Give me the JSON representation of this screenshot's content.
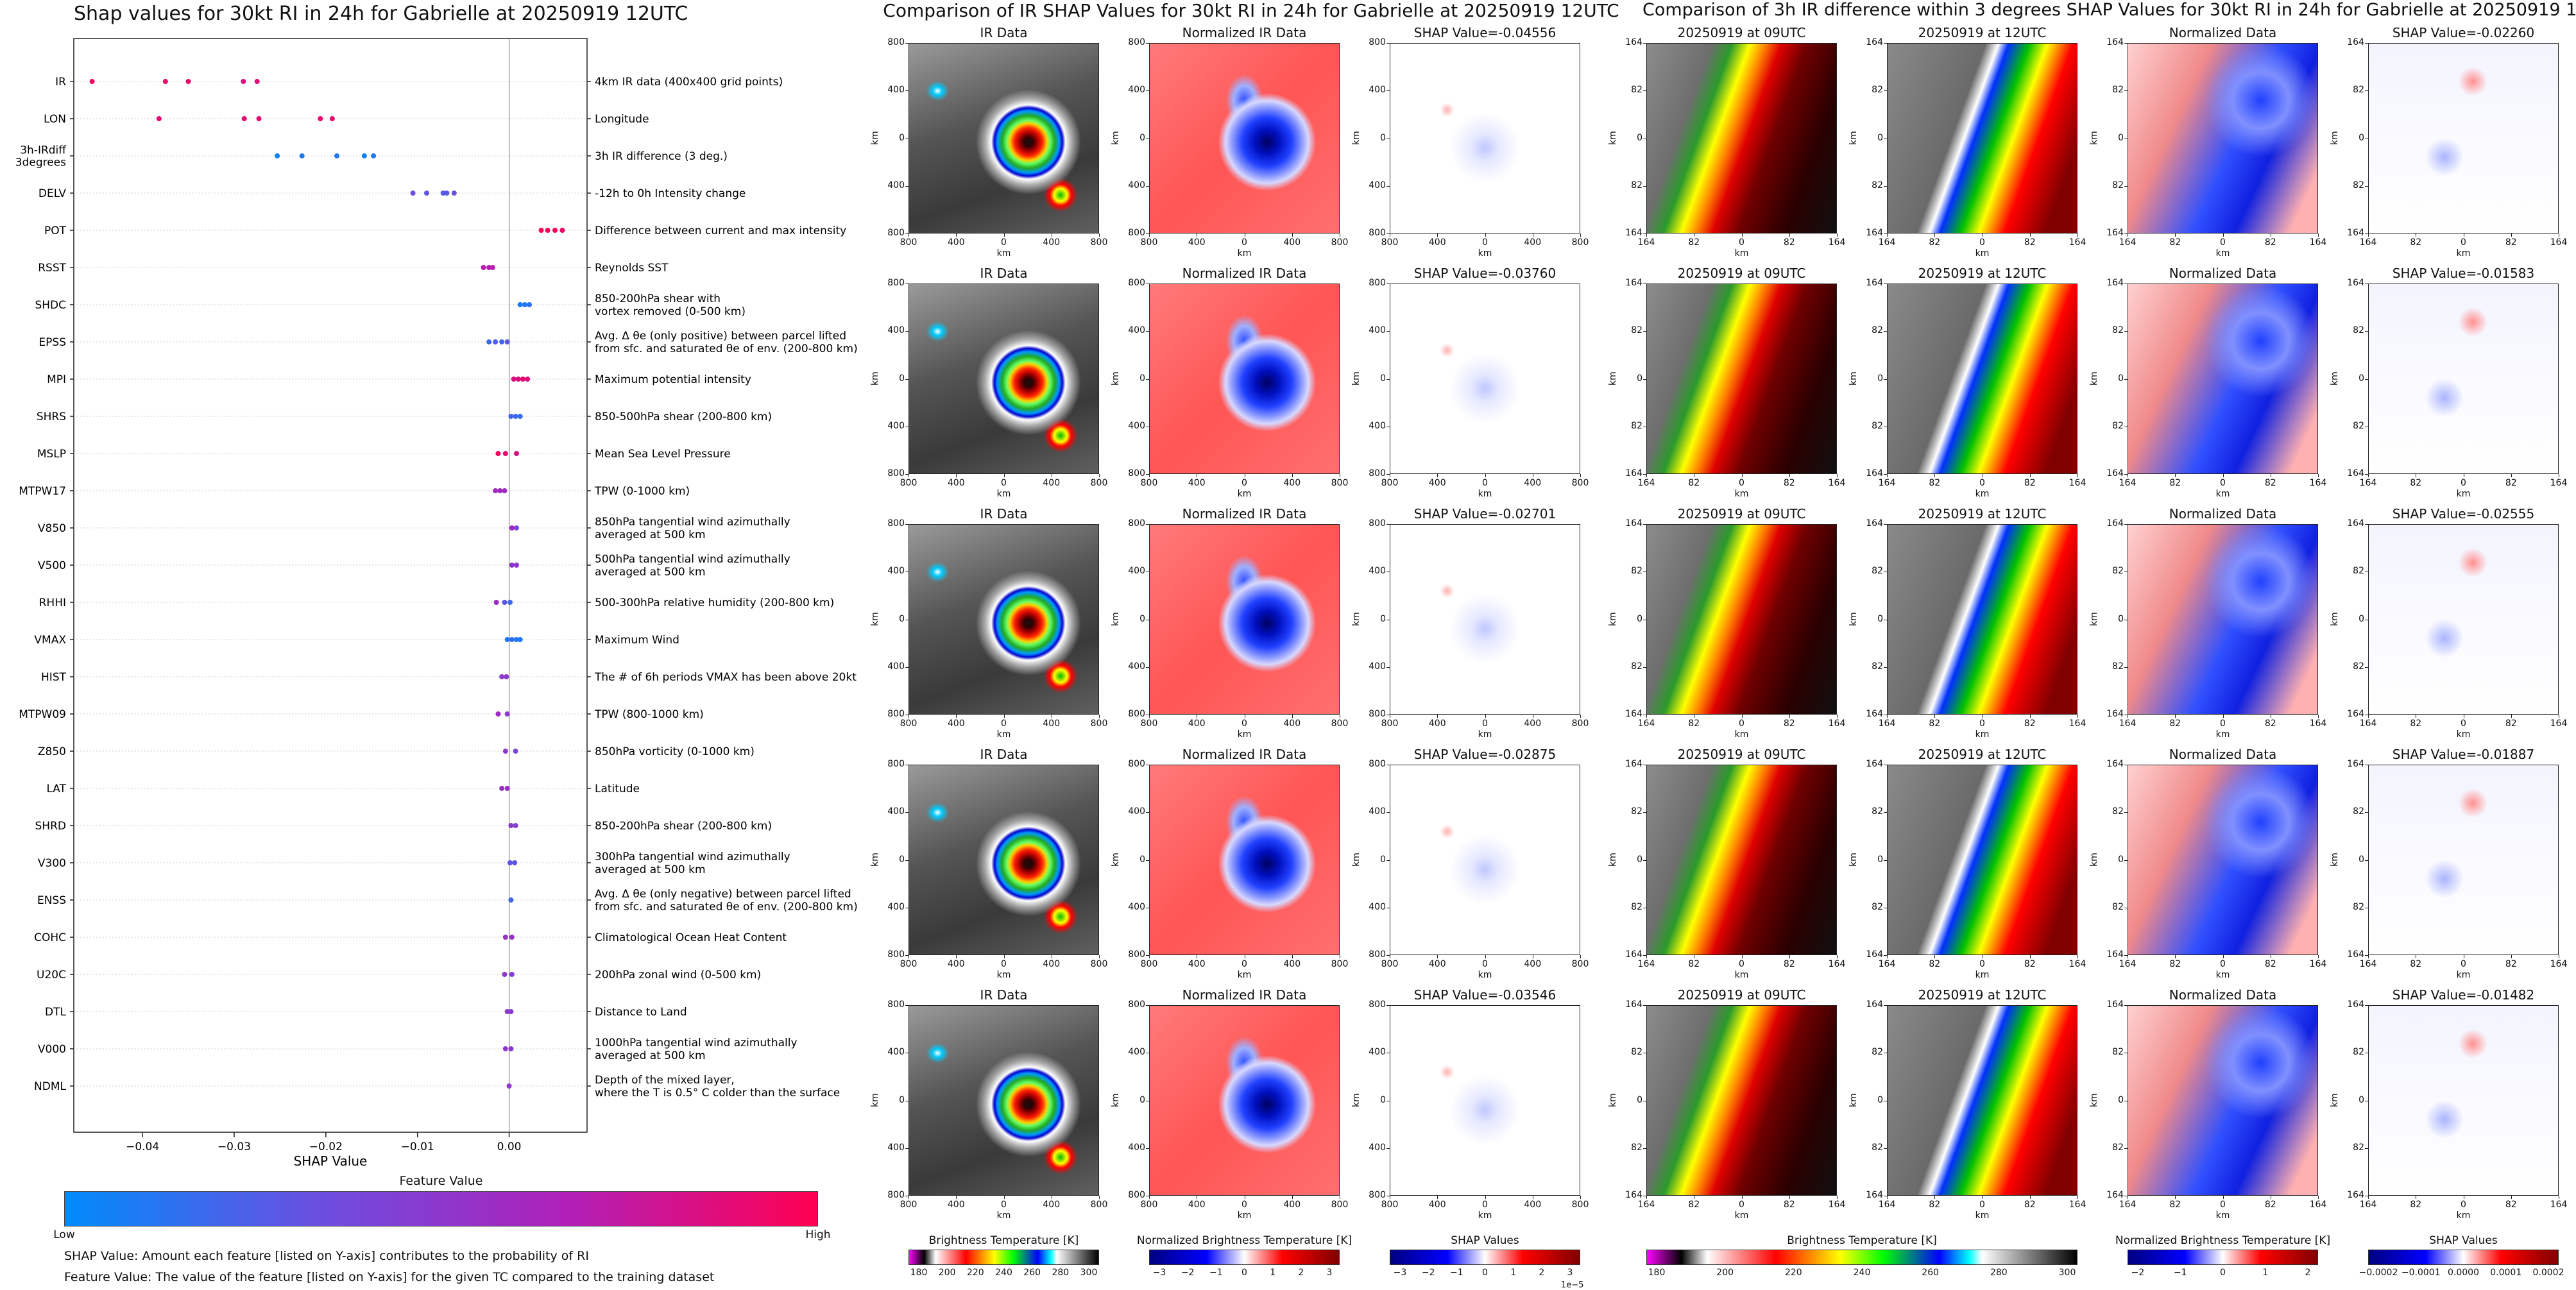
{
  "shap_plot": {
    "title": "Shap values for 30kt RI in 24h for Gabrielle at 20250919 12UTC",
    "xlabel": "SHAP Value",
    "xticks": [
      "−0.04",
      "−0.03",
      "−0.02",
      "−0.01",
      "0.00"
    ],
    "features": [
      {
        "code": "IR",
        "desc": "4km IR data (400x400 grid points)"
      },
      {
        "code": "LON",
        "desc": "Longitude"
      },
      {
        "code": "3h-IRdiff\n3degrees",
        "desc": "3h IR difference (3 deg.)"
      },
      {
        "code": "DELV",
        "desc": "-12h to 0h Intensity change"
      },
      {
        "code": "POT",
        "desc": "Difference between current and max intensity"
      },
      {
        "code": "RSST",
        "desc": "Reynolds SST"
      },
      {
        "code": "SHDC",
        "desc": "850-200hPa shear with\nvortex removed (0-500 km)"
      },
      {
        "code": "EPSS",
        "desc": "Avg. Δ θe (only positive) between parcel lifted\nfrom sfc. and saturated θe of env. (200-800 km)"
      },
      {
        "code": "MPI",
        "desc": "Maximum potential intensity"
      },
      {
        "code": "SHRS",
        "desc": "850-500hPa shear (200-800 km)"
      },
      {
        "code": "MSLP",
        "desc": "Mean Sea Level Pressure"
      },
      {
        "code": "MTPW17",
        "desc": "TPW (0-1000 km)"
      },
      {
        "code": "V850",
        "desc": "850hPa tangential wind azimuthally\naveraged at 500 km"
      },
      {
        "code": "V500",
        "desc": "500hPa tangential wind azimuthally\naveraged at 500 km"
      },
      {
        "code": "RHHI",
        "desc": "500-300hPa relative humidity (200-800 km)"
      },
      {
        "code": "VMAX",
        "desc": "Maximum Wind"
      },
      {
        "code": "HIST",
        "desc": "The # of 6h periods VMAX has been above 20kt"
      },
      {
        "code": "MTPW09",
        "desc": "TPW (800-1000 km)"
      },
      {
        "code": "Z850",
        "desc": "850hPa vorticity (0-1000 km)"
      },
      {
        "code": "LAT",
        "desc": "Latitude"
      },
      {
        "code": "SHRD",
        "desc": "850-200hPa shear (200-800 km)"
      },
      {
        "code": "V300",
        "desc": "300hPa tangential wind azimuthally\naveraged at 500 km"
      },
      {
        "code": "ENSS",
        "desc": "Avg. Δ θe (only negative) between parcel lifted\nfrom sfc. and saturated θe of env. (200-800 km)"
      },
      {
        "code": "COHC",
        "desc": "Climatological Ocean Heat Content"
      },
      {
        "code": "U20C",
        "desc": "200hPa zonal wind (0-500 km)"
      },
      {
        "code": "DTL",
        "desc": "Distance to Land"
      },
      {
        "code": "V000",
        "desc": "1000hPa tangential wind azimuthally\naveraged at 500 km"
      },
      {
        "code": "NDML",
        "desc": "Depth of the mixed layer,\nwhere the T is 0.5° C colder than the surface"
      }
    ],
    "colorbar": {
      "title": "Feature Value",
      "low": "Low",
      "high": "High",
      "colors": [
        "#008bfb",
        "#6a4fe0",
        "#b020b8",
        "#ff0052"
      ]
    },
    "notes": [
      "SHAP Value: Amount each feature [listed on Y-axis] contributes to the probability of RI",
      "Feature Value: The value of the feature [listed on Y-axis] for the given TC compared to the training dataset"
    ]
  },
  "ir_grid": {
    "title": "Comparison of IR SHAP Values for 30kt RI in 24h for Gabrielle at 20250919 12UTC",
    "col_titles": [
      "IR Data",
      "Normalized IR Data"
    ],
    "shap_values": [
      "SHAP Value=-0.04556",
      "SHAP Value=-0.03760",
      "SHAP Value=-0.02701",
      "SHAP Value=-0.02875",
      "SHAP Value=-0.03546"
    ],
    "ticks": [
      "800",
      "400",
      "0",
      "400",
      "800"
    ],
    "axis_label": "km",
    "colorbars": [
      {
        "label": "Brightness Temperature [K]",
        "ticks": [
          "180",
          "200",
          "220",
          "240",
          "260",
          "280",
          "300"
        ]
      },
      {
        "label": "Normalized Brightness Temperature [K]",
        "ticks": [
          "−3",
          "−2",
          "−1",
          "0",
          "1",
          "2",
          "3"
        ]
      },
      {
        "label": "SHAP Values",
        "ticks": [
          "−3",
          "−2",
          "−1",
          "0",
          "1",
          "2",
          "3"
        ],
        "exponent": "1e−5"
      }
    ]
  },
  "diff_grid": {
    "title": "Comparison of 3h IR difference within 3 degrees SHAP Values for 30kt RI in 24h for Gabrielle at 20250919 12UTC",
    "col_titles": [
      "20250919 at 09UTC",
      "20250919 at 12UTC",
      "Normalized Data"
    ],
    "shap_values": [
      "SHAP Value=-0.02260",
      "SHAP Value=-0.01583",
      "SHAP Value=-0.02555",
      "SHAP Value=-0.01887",
      "SHAP Value=-0.01482"
    ],
    "ticks": [
      "164",
      "82",
      "0",
      "82",
      "164"
    ],
    "axis_label": "km",
    "colorbars": [
      {
        "label": "Brightness Temperature [K]",
        "ticks": [
          "180",
          "200",
          "220",
          "240",
          "260",
          "280",
          "300"
        ]
      },
      {
        "label": "Normalized Brightness Temperature [K]",
        "ticks": [
          "−2",
          "−1",
          "0",
          "1",
          "2"
        ]
      },
      {
        "label": "SHAP Values",
        "ticks": [
          "−0.0002",
          "−0.0001",
          "0.0000",
          "0.0001",
          "0.0002"
        ]
      }
    ]
  },
  "chart_data": {
    "type": "scatter",
    "title": "Shap values for 30kt RI in 24h for Gabrielle at 20250919 12UTC",
    "xlabel": "SHAP Value",
    "ylabel": "",
    "xlim": [
      -0.0475,
      0.0085
    ],
    "legend": "colorbar-bottom",
    "series": [
      {
        "feature": "IR",
        "points": [
          [
            -0.0455,
            0.95
          ],
          [
            -0.0375,
            0.9
          ],
          [
            -0.035,
            0.92
          ],
          [
            -0.029,
            0.85
          ],
          [
            -0.0275,
            0.88
          ]
        ]
      },
      {
        "feature": "LON",
        "points": [
          [
            -0.0382,
            0.9
          ],
          [
            -0.0289,
            0.9
          ],
          [
            -0.0273,
            0.9
          ],
          [
            -0.0206,
            0.9
          ],
          [
            -0.0193,
            0.9
          ]
        ]
      },
      {
        "feature": "3h-IRdiff 3degrees",
        "points": [
          [
            -0.0253,
            0.05
          ],
          [
            -0.0226,
            0.1
          ],
          [
            -0.0188,
            0.1
          ],
          [
            -0.0158,
            0.05
          ],
          [
            -0.0148,
            0.1
          ]
        ]
      },
      {
        "feature": "DELV",
        "points": [
          [
            -0.0105,
            0.35
          ],
          [
            -0.009,
            0.3
          ],
          [
            -0.0072,
            0.25
          ],
          [
            -0.0068,
            0.3
          ],
          [
            -0.006,
            0.35
          ]
        ]
      },
      {
        "feature": "POT",
        "points": [
          [
            0.0035,
            1.0
          ],
          [
            0.0042,
            1.0
          ],
          [
            0.005,
            1.0
          ],
          [
            0.0058,
            0.95
          ]
        ]
      },
      {
        "feature": "RSST",
        "points": [
          [
            -0.0028,
            0.7
          ],
          [
            -0.0022,
            0.7
          ],
          [
            -0.0018,
            0.7
          ]
        ]
      },
      {
        "feature": "SHDC",
        "points": [
          [
            0.0012,
            0.1
          ],
          [
            0.0017,
            0.1
          ],
          [
            0.0022,
            0.15
          ]
        ]
      },
      {
        "feature": "EPSS",
        "points": [
          [
            -0.0022,
            0.2
          ],
          [
            -0.0015,
            0.25
          ],
          [
            -0.0008,
            0.2
          ],
          [
            -0.0002,
            0.3
          ]
        ]
      },
      {
        "feature": "MPI",
        "points": [
          [
            0.0005,
            0.85
          ],
          [
            0.001,
            0.85
          ],
          [
            0.0015,
            0.9
          ],
          [
            0.002,
            0.85
          ]
        ]
      },
      {
        "feature": "SHRS",
        "points": [
          [
            0.0002,
            0.2
          ],
          [
            0.0007,
            0.2
          ],
          [
            0.0012,
            0.15
          ]
        ]
      },
      {
        "feature": "MSLP",
        "points": [
          [
            -0.0012,
            0.95
          ],
          [
            -0.0004,
            0.9
          ],
          [
            0.0008,
            0.85
          ]
        ]
      },
      {
        "feature": "MTPW17",
        "points": [
          [
            -0.0015,
            0.6
          ],
          [
            -0.001,
            0.6
          ],
          [
            -0.0005,
            0.55
          ]
        ]
      },
      {
        "feature": "V850",
        "points": [
          [
            0.0003,
            0.6
          ],
          [
            0.0008,
            0.4
          ]
        ]
      },
      {
        "feature": "V500",
        "points": [
          [
            0.0003,
            0.5
          ],
          [
            0.0008,
            0.5
          ]
        ]
      },
      {
        "feature": "RHHI",
        "points": [
          [
            -0.0014,
            0.6
          ],
          [
            -0.0005,
            0.3
          ],
          [
            0.0001,
            0.2
          ]
        ]
      },
      {
        "feature": "VMAX",
        "points": [
          [
            -0.0002,
            0.1
          ],
          [
            0.0003,
            0.15
          ],
          [
            0.0008,
            0.1
          ],
          [
            0.0012,
            0.1
          ]
        ]
      },
      {
        "feature": "HIST",
        "points": [
          [
            -0.0008,
            0.5
          ],
          [
            -0.0003,
            0.5
          ]
        ]
      },
      {
        "feature": "MTPW09",
        "points": [
          [
            -0.0012,
            0.6
          ],
          [
            -0.0002,
            0.5
          ]
        ]
      },
      {
        "feature": "Z850",
        "points": [
          [
            -0.0004,
            0.5
          ],
          [
            0.0007,
            0.4
          ]
        ]
      },
      {
        "feature": "LAT",
        "points": [
          [
            -0.0008,
            0.55
          ],
          [
            -0.0002,
            0.55
          ]
        ]
      },
      {
        "feature": "SHRD",
        "points": [
          [
            0.0002,
            0.5
          ],
          [
            0.0007,
            0.45
          ]
        ]
      },
      {
        "feature": "V300",
        "points": [
          [
            0.0001,
            0.3
          ],
          [
            0.0006,
            0.3
          ]
        ]
      },
      {
        "feature": "ENSS",
        "points": [
          [
            0.0002,
            0.2
          ]
        ]
      },
      {
        "feature": "COHC",
        "points": [
          [
            -0.0004,
            0.55
          ],
          [
            0.0003,
            0.55
          ]
        ]
      },
      {
        "feature": "U20C",
        "points": [
          [
            -0.0005,
            0.5
          ],
          [
            0.0003,
            0.45
          ]
        ]
      },
      {
        "feature": "DTL",
        "points": [
          [
            -0.0002,
            0.5
          ],
          [
            0.0002,
            0.5
          ]
        ]
      },
      {
        "feature": "V000",
        "points": [
          [
            -0.0004,
            0.5
          ],
          [
            0.0002,
            0.5
          ]
        ]
      },
      {
        "feature": "NDML",
        "points": [
          [
            0.0,
            0.5
          ]
        ]
      }
    ]
  }
}
